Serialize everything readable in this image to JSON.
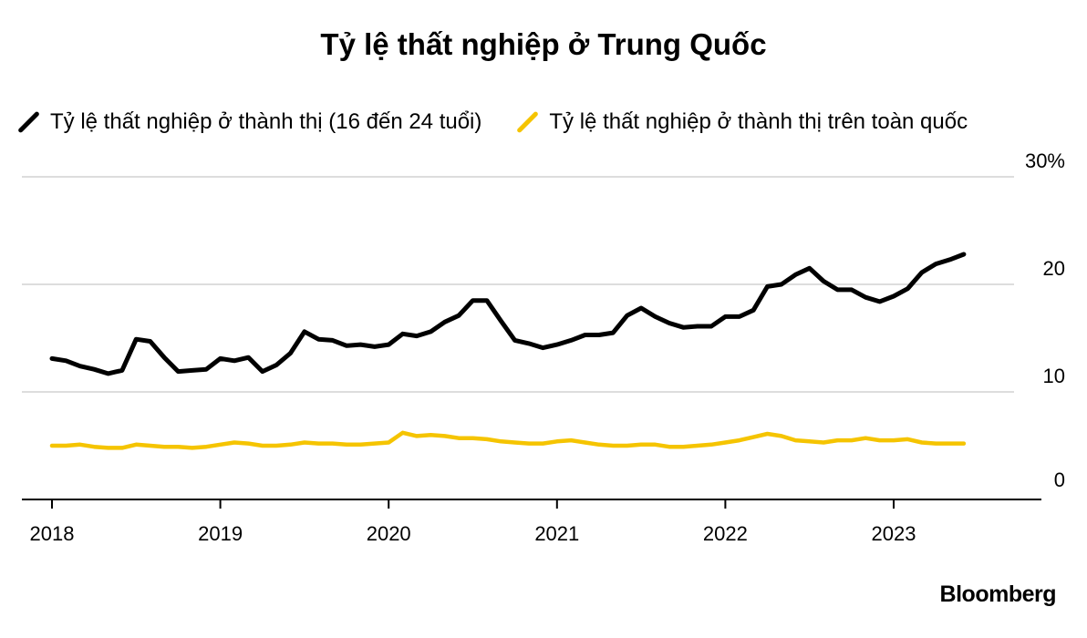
{
  "title": "Tỷ lệ thất nghiệp ở Trung Quốc",
  "brand": "Bloomberg",
  "colors": {
    "youth": "#000000",
    "national": "#f5c400",
    "grid": "#dddddd",
    "axis": "#000000"
  },
  "chart_data": {
    "type": "line",
    "title": "Tỷ lệ thất nghiệp ở Trung Quốc",
    "ylim": [
      0,
      30
    ],
    "y_ticks": [
      0,
      10,
      20,
      30
    ],
    "y_tick_labels": [
      "0",
      "10",
      "20",
      "30%"
    ],
    "x_ticks": [
      2018,
      2019,
      2020,
      2021,
      2022,
      2023
    ],
    "x_tick_labels": [
      "2018",
      "2019",
      "2020",
      "2021",
      "2022",
      "2023"
    ],
    "grid": true,
    "legend": "top-left",
    "series": [
      {
        "name": "Tỷ lệ thất nghiệp ở thành thị (16 đến 24 tuổi)",
        "color": "#000000",
        "points": [
          [
            "2018-01",
            13.1
          ],
          [
            "2018-02",
            12.9
          ],
          [
            "2018-03",
            12.4
          ],
          [
            "2018-04",
            12.1
          ],
          [
            "2018-05",
            11.7
          ],
          [
            "2018-06",
            12.0
          ],
          [
            "2018-07",
            14.9
          ],
          [
            "2018-08",
            14.7
          ],
          [
            "2018-09",
            13.2
          ],
          [
            "2018-10",
            11.9
          ],
          [
            "2018-11",
            12.0
          ],
          [
            "2018-12",
            12.1
          ],
          [
            "2019-01",
            13.1
          ],
          [
            "2019-02",
            12.9
          ],
          [
            "2019-03",
            13.2
          ],
          [
            "2019-04",
            11.9
          ],
          [
            "2019-05",
            12.5
          ],
          [
            "2019-06",
            13.6
          ],
          [
            "2019-07",
            15.6
          ],
          [
            "2019-08",
            14.9
          ],
          [
            "2019-09",
            14.8
          ],
          [
            "2019-10",
            14.3
          ],
          [
            "2019-11",
            14.4
          ],
          [
            "2019-12",
            14.2
          ],
          [
            "2020-01",
            14.4
          ],
          [
            "2020-02",
            15.4
          ],
          [
            "2020-03",
            15.2
          ],
          [
            "2020-04",
            15.6
          ],
          [
            "2020-05",
            16.5
          ],
          [
            "2020-06",
            17.1
          ],
          [
            "2020-07",
            18.5
          ],
          [
            "2020-08",
            18.5
          ],
          [
            "2020-09",
            16.6
          ],
          [
            "2020-10",
            14.8
          ],
          [
            "2020-11",
            14.5
          ],
          [
            "2020-12",
            14.1
          ],
          [
            "2021-01",
            14.4
          ],
          [
            "2021-02",
            14.8
          ],
          [
            "2021-03",
            15.3
          ],
          [
            "2021-04",
            15.3
          ],
          [
            "2021-05",
            15.5
          ],
          [
            "2021-06",
            17.1
          ],
          [
            "2021-07",
            17.8
          ],
          [
            "2021-08",
            17.0
          ],
          [
            "2021-09",
            16.4
          ],
          [
            "2021-10",
            16.0
          ],
          [
            "2021-11",
            16.1
          ],
          [
            "2021-12",
            16.1
          ],
          [
            "2022-01",
            17.0
          ],
          [
            "2022-02",
            17.0
          ],
          [
            "2022-03",
            17.6
          ],
          [
            "2022-04",
            19.8
          ],
          [
            "2022-05",
            20.0
          ],
          [
            "2022-06",
            20.9
          ],
          [
            "2022-07",
            21.5
          ],
          [
            "2022-08",
            20.3
          ],
          [
            "2022-09",
            19.5
          ],
          [
            "2022-10",
            19.5
          ],
          [
            "2022-11",
            18.8
          ],
          [
            "2022-12",
            18.4
          ],
          [
            "2023-01",
            18.9
          ],
          [
            "2023-02",
            19.6
          ],
          [
            "2023-03",
            21.1
          ],
          [
            "2023-04",
            21.9
          ],
          [
            "2023-05",
            22.3
          ],
          [
            "2023-06",
            22.8
          ]
        ]
      },
      {
        "name": "Tỷ lệ thất nghiệp ở thành thị trên toàn quốc",
        "color": "#f5c400",
        "points": [
          [
            "2018-01",
            5.0
          ],
          [
            "2018-02",
            5.0
          ],
          [
            "2018-03",
            5.1
          ],
          [
            "2018-04",
            4.9
          ],
          [
            "2018-05",
            4.8
          ],
          [
            "2018-06",
            4.8
          ],
          [
            "2018-07",
            5.1
          ],
          [
            "2018-08",
            5.0
          ],
          [
            "2018-09",
            4.9
          ],
          [
            "2018-10",
            4.9
          ],
          [
            "2018-11",
            4.8
          ],
          [
            "2018-12",
            4.9
          ],
          [
            "2019-01",
            5.1
          ],
          [
            "2019-02",
            5.3
          ],
          [
            "2019-03",
            5.2
          ],
          [
            "2019-04",
            5.0
          ],
          [
            "2019-05",
            5.0
          ],
          [
            "2019-06",
            5.1
          ],
          [
            "2019-07",
            5.3
          ],
          [
            "2019-08",
            5.2
          ],
          [
            "2019-09",
            5.2
          ],
          [
            "2019-10",
            5.1
          ],
          [
            "2019-11",
            5.1
          ],
          [
            "2019-12",
            5.2
          ],
          [
            "2020-01",
            5.3
          ],
          [
            "2020-02",
            6.2
          ],
          [
            "2020-03",
            5.9
          ],
          [
            "2020-04",
            6.0
          ],
          [
            "2020-05",
            5.9
          ],
          [
            "2020-06",
            5.7
          ],
          [
            "2020-07",
            5.7
          ],
          [
            "2020-08",
            5.6
          ],
          [
            "2020-09",
            5.4
          ],
          [
            "2020-10",
            5.3
          ],
          [
            "2020-11",
            5.2
          ],
          [
            "2020-12",
            5.2
          ],
          [
            "2021-01",
            5.4
          ],
          [
            "2021-02",
            5.5
          ],
          [
            "2021-03",
            5.3
          ],
          [
            "2021-04",
            5.1
          ],
          [
            "2021-05",
            5.0
          ],
          [
            "2021-06",
            5.0
          ],
          [
            "2021-07",
            5.1
          ],
          [
            "2021-08",
            5.1
          ],
          [
            "2021-09",
            4.9
          ],
          [
            "2021-10",
            4.9
          ],
          [
            "2021-11",
            5.0
          ],
          [
            "2021-12",
            5.1
          ],
          [
            "2022-01",
            5.3
          ],
          [
            "2022-02",
            5.5
          ],
          [
            "2022-03",
            5.8
          ],
          [
            "2022-04",
            6.1
          ],
          [
            "2022-05",
            5.9
          ],
          [
            "2022-06",
            5.5
          ],
          [
            "2022-07",
            5.4
          ],
          [
            "2022-08",
            5.3
          ],
          [
            "2022-09",
            5.5
          ],
          [
            "2022-10",
            5.5
          ],
          [
            "2022-11",
            5.7
          ],
          [
            "2022-12",
            5.5
          ],
          [
            "2023-01",
            5.5
          ],
          [
            "2023-02",
            5.6
          ],
          [
            "2023-03",
            5.3
          ],
          [
            "2023-04",
            5.2
          ],
          [
            "2023-05",
            5.2
          ],
          [
            "2023-06",
            5.2
          ]
        ]
      }
    ]
  }
}
